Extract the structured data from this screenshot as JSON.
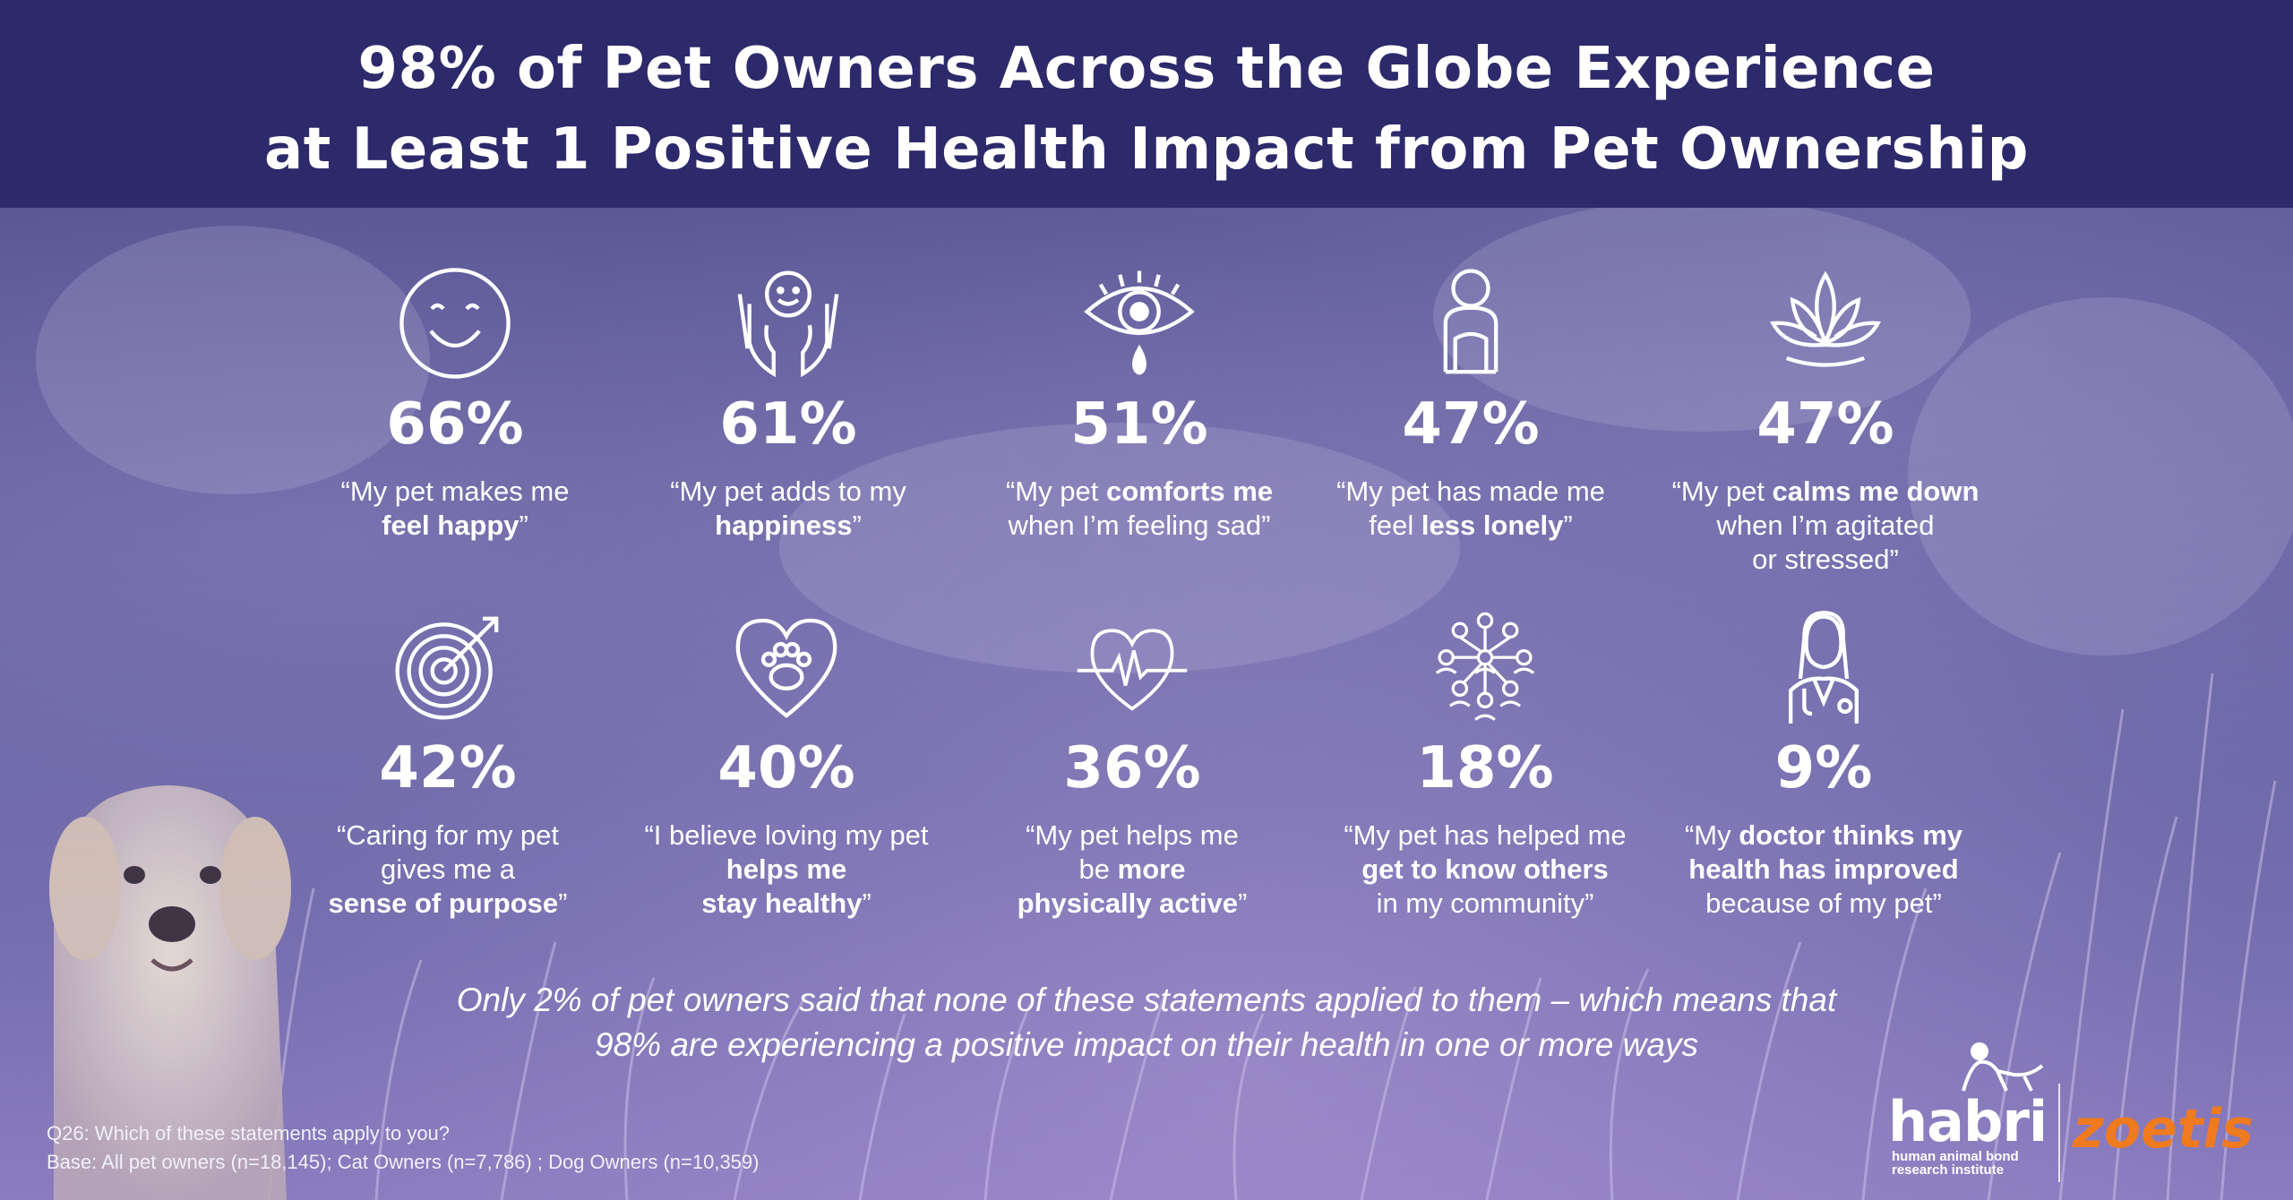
{
  "title": {
    "line1": "98% of Pet Owners Across the Globe Experience",
    "line2": "at Least 1 Positive Health Impact from Pet Ownership"
  },
  "stats": [
    {
      "icon": "smiley-face-icon",
      "percent": "66%",
      "q1": "“My pet makes me",
      "q2_bold": "feel happy",
      "q2_end": "”",
      "q3": ""
    },
    {
      "icon": "hands-holding-happy-face-icon",
      "percent": "61%",
      "q1": "“My pet adds to my",
      "q2_bold": "happiness",
      "q2_end": "”",
      "q3": ""
    },
    {
      "icon": "crying-eye-icon",
      "percent": "51%",
      "q1_pre": "“My pet ",
      "q1_bold": "comforts me",
      "q2": "when I’m feeling sad”"
    },
    {
      "icon": "lonely-person-icon",
      "percent": "47%",
      "q1": "“My pet has made me",
      "q2_pre": "feel ",
      "q2_bold": "less lonely",
      "q2_end": "”"
    },
    {
      "icon": "lotus-flower-icon",
      "percent": "47%",
      "q1_pre": "“My pet ",
      "q1_bold": "calms me down",
      "q2": "when I’m agitated",
      "q3": "or stressed”"
    },
    {
      "icon": "target-icon",
      "percent": "42%",
      "q1": "“Caring for my pet",
      "q2": "gives me a",
      "q3_bold": "sense of purpose",
      "q3_end": "”"
    },
    {
      "icon": "paw-heart-icon",
      "percent": "40%",
      "q1": "“I believe loving my pet",
      "q2_bold": "helps me",
      "q3_bold": "stay healthy",
      "q3_end": "”"
    },
    {
      "icon": "heartbeat-icon",
      "percent": "36%",
      "q1": "“My pet helps me",
      "q2_pre": "be ",
      "q2_bold": "more",
      "q3_bold": "physically active",
      "q3_end": "”"
    },
    {
      "icon": "community-network-icon",
      "percent": "18%",
      "q1": "“My pet has helped me",
      "q2_bold": "get to know others",
      "q3": "in my community”"
    },
    {
      "icon": "doctor-icon",
      "percent": "9%",
      "q1_pre": "“My ",
      "q1_bold": "doctor thinks my",
      "q2_bold": "health has improved",
      "q3": "because of my pet”"
    }
  ],
  "summary": {
    "line1": "Only 2% of pet owners said that none of these statements applied to them – which means that",
    "line2": "98%  are experiencing a positive impact on their health in one or more ways"
  },
  "footnote": {
    "line1": "Q26:  Which of these statements apply to you?",
    "line2": "Base: All pet owners (n=18,145); Cat Owners (n=7,786) ; Dog Owners (n=10,359)"
  },
  "logos": {
    "habri": "habri",
    "habri_sub1": "human animal bond",
    "habri_sub2": "research institute",
    "zoetis": "zoetis"
  },
  "colors": {
    "header_bg": "#2c2a6b",
    "zoetis_orange": "#f07a1e",
    "text": "#ffffff"
  }
}
